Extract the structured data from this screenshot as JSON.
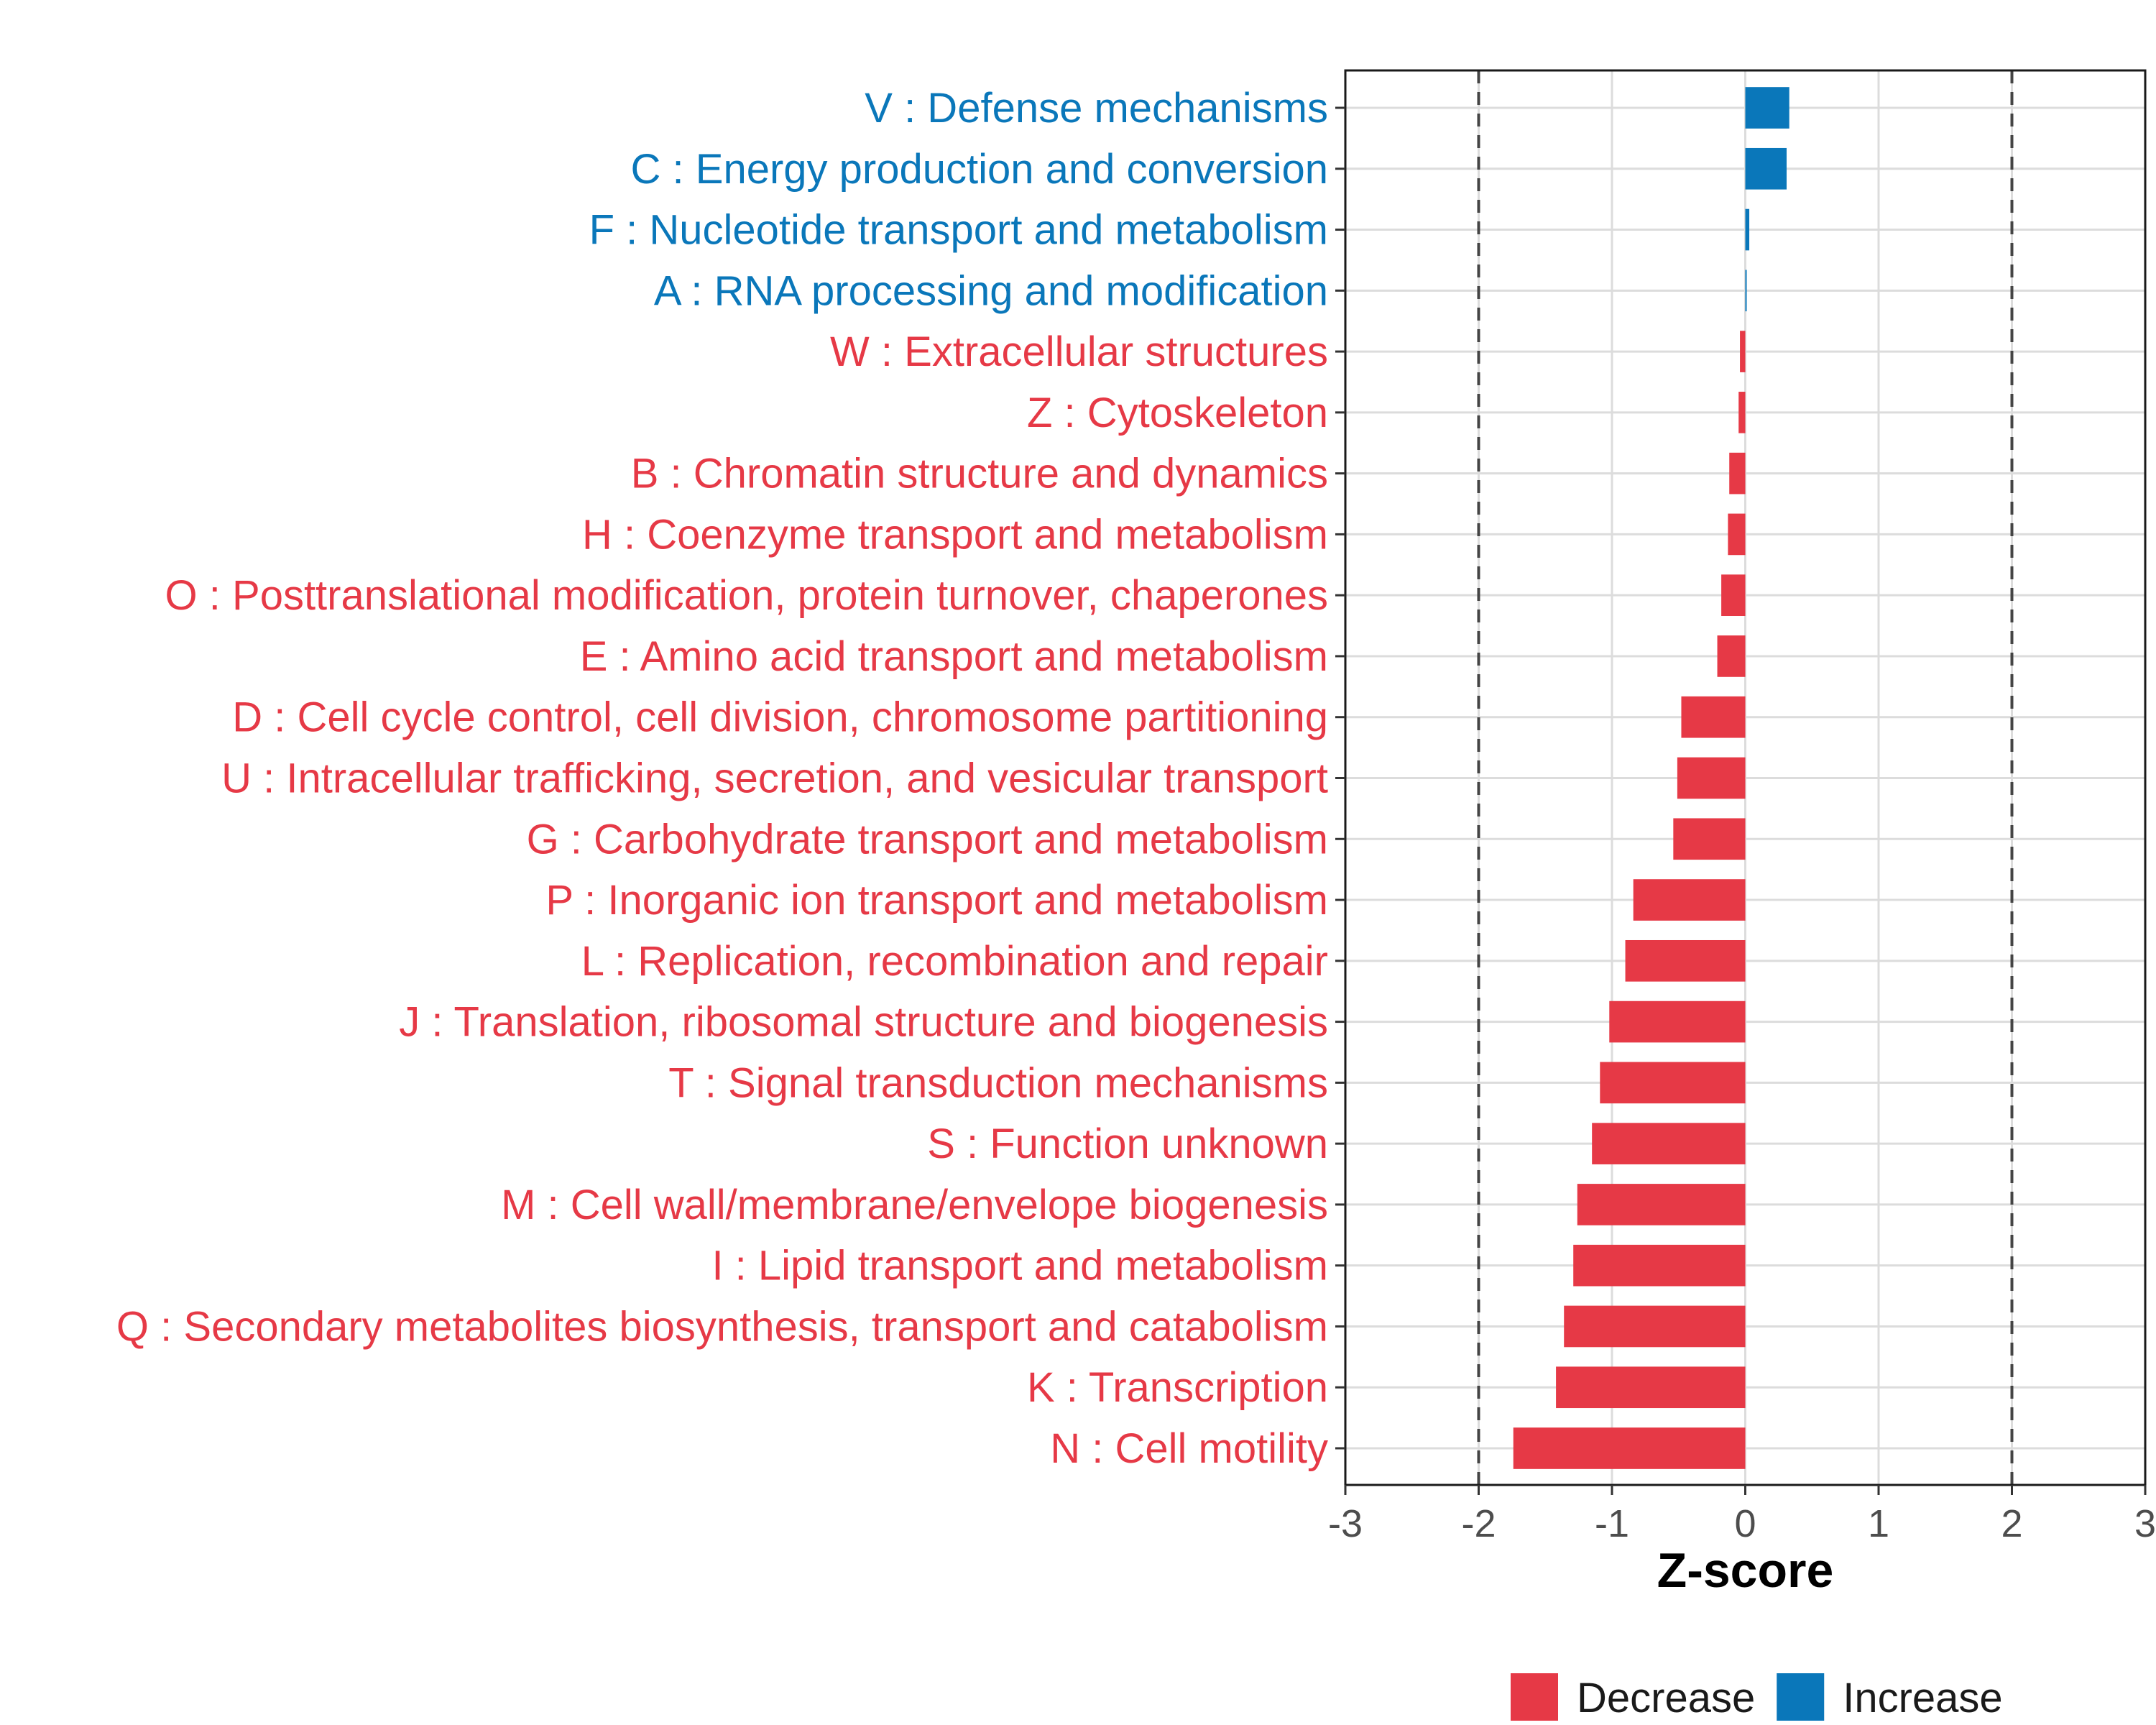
{
  "chart_data": {
    "type": "bar",
    "orientation": "horizontal",
    "xlabel": "Z-score",
    "ylabel": "",
    "xlim": [
      -3,
      3
    ],
    "x_ticks": [
      "-3",
      "-2",
      "-1",
      "0",
      "1",
      "2",
      "3"
    ],
    "x_tick_values": [
      -3,
      -2,
      -1,
      0,
      1,
      2,
      3
    ],
    "threshold_lines": [
      -2,
      2
    ],
    "grid": true,
    "legend_position": "bottom",
    "legend": [
      {
        "label": "Decrease",
        "color": "#E63946"
      },
      {
        "label": "Increase",
        "color": "#0A77BA"
      }
    ],
    "colors": {
      "decrease": "#E63946",
      "increase": "#0A77BA"
    },
    "categories": [
      "V : Defense mechanisms",
      "C : Energy production and conversion",
      "F : Nucleotide transport and metabolism",
      "A : RNA processing and modification",
      "W : Extracellular structures",
      "Z : Cytoskeleton",
      "B : Chromatin structure and dynamics",
      "H : Coenzyme transport and metabolism",
      "O : Posttranslational modification, protein turnover, chaperones",
      "E : Amino acid transport and metabolism",
      "D : Cell cycle control, cell division, chromosome partitioning",
      "U : Intracellular trafficking, secretion, and vesicular transport",
      "G : Carbohydrate transport and metabolism",
      "P : Inorganic ion transport and metabolism",
      "L : Replication, recombination and repair",
      "J : Translation, ribosomal structure and biogenesis",
      "T : Signal transduction mechanisms",
      "S : Function unknown",
      "M : Cell wall/membrane/envelope biogenesis",
      "I : Lipid transport and metabolism",
      "Q : Secondary metabolites biosynthesis, transport and catabolism",
      "K : Transcription",
      "N : Cell motility"
    ],
    "values": [
      0.33,
      0.31,
      0.03,
      0.01,
      -0.04,
      -0.05,
      -0.12,
      -0.13,
      -0.18,
      -0.21,
      -0.48,
      -0.51,
      -0.54,
      -0.84,
      -0.9,
      -1.02,
      -1.09,
      -1.15,
      -1.26,
      -1.29,
      -1.36,
      -1.42,
      -1.74
    ]
  }
}
